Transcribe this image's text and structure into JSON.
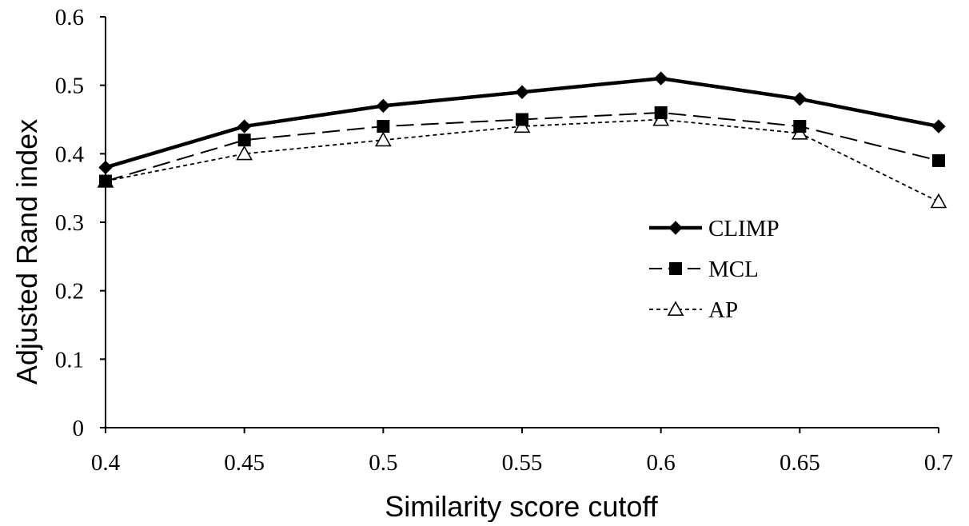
{
  "chart_data": {
    "type": "line",
    "title": "",
    "xlabel": "Similarity score cutoff",
    "ylabel": "Adjusted Rand index",
    "x": [
      0.4,
      0.45,
      0.5,
      0.55,
      0.6,
      0.65,
      0.7
    ],
    "x_tick_labels": [
      "0.4",
      "0.45",
      "0.5",
      "0.55",
      "0.6",
      "0.65",
      "0.7"
    ],
    "xlim": [
      0.4,
      0.7
    ],
    "ylim": [
      0,
      0.6
    ],
    "y_ticks": [
      0,
      0.1,
      0.2,
      0.3,
      0.4,
      0.5,
      0.6
    ],
    "y_tick_labels": [
      "0",
      "0.1",
      "0.2",
      "0.3",
      "0.4",
      "0.5",
      "0.6"
    ],
    "grid": false,
    "legend_position": "right",
    "series": [
      {
        "name": "CLIMP",
        "values": [
          0.38,
          0.44,
          0.47,
          0.49,
          0.51,
          0.48,
          0.44
        ],
        "marker": "diamond",
        "line_style": "solid-thick",
        "color": "#000000"
      },
      {
        "name": "MCL",
        "values": [
          0.36,
          0.42,
          0.44,
          0.45,
          0.46,
          0.44,
          0.39
        ],
        "marker": "square",
        "line_style": "long-dash",
        "color": "#000000"
      },
      {
        "name": "AP",
        "values": [
          0.36,
          0.4,
          0.42,
          0.44,
          0.45,
          0.43,
          0.33
        ],
        "marker": "open-triangle",
        "line_style": "short-dash",
        "color": "#000000"
      }
    ]
  }
}
